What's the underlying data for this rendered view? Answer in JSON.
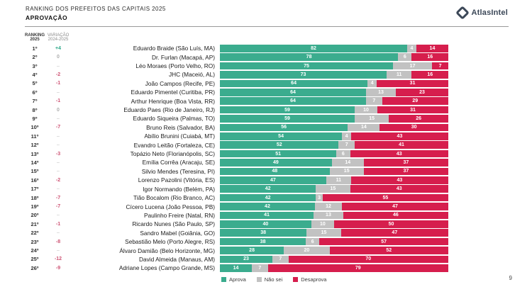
{
  "header": {
    "title": "RANKING DOS PREFEITOS DAS CAPITAIS 2025",
    "subtitle": "APROVAÇÃO",
    "brand": "AtlasIntel"
  },
  "table_header": {
    "ranking_line1": "RANKING",
    "ranking_line2": "2025",
    "variation_line1": "VARIAÇÃO",
    "variation_line2": "2024-2025"
  },
  "legend": {
    "items": [
      {
        "label": "Aprova",
        "color": "#3BAC8E"
      },
      {
        "label": "Não sei",
        "color": "#C2C2C2"
      },
      {
        "label": "Desaprova",
        "color": "#D61E4D"
      }
    ]
  },
  "page_number": "9",
  "colors": {
    "aprova": "#3BAC8E",
    "nao_sei": "#C2C2C2",
    "desaprova": "#D61E4D",
    "variation_positive": "#2EA98A",
    "variation_negative": "#CE5374",
    "variation_neutral": "#ADADAD",
    "brand_navy": "#3C4858"
  },
  "chart_data": {
    "type": "bar",
    "orientation": "horizontal-stacked",
    "unit": "%",
    "title": "RANKING DOS PREFEITOS DAS CAPITAIS 2025 — APROVAÇÃO",
    "legend_position": "bottom",
    "series_names": [
      "Aprova",
      "Não sei",
      "Desaprova"
    ],
    "categories": [
      "Eduardo Braide (São Luís, MA)",
      "Dr. Furlan (Macapá, AP)",
      "Léo Moraes (Porto Velho, RO)",
      "JHC (Maceió, AL)",
      "João Campos (Recife, PE)",
      "Eduardo Pimentel (Curitiba, PR)",
      "Arthur Henrique (Boa Vista, RR)",
      "Eduardo Paes (Rio de Janeiro, RJ)",
      "Eduardo Siqueira (Palmas, TO)",
      "Bruno Reis (Salvador, BA)",
      "Abílio Brunini (Cuiabá, MT)",
      "Evandro Leitão (Fortaleza, CE)",
      "Topázio Neto (Florianópolis, SC)",
      "Emília Corrêa (Aracaju, SE)",
      "Silvio Mendes (Teresina, PI)",
      "Lorenzo Pazolini (Vitória, ES)",
      "Igor Normando (Belém, PA)",
      "Tião Bocalom (Rio Branco, AC)",
      "Cícero Lucena (João Pessoa, PB)",
      "Paulinho Freire (Natal, RN)",
      "Ricardo Nunes (São Paulo, SP)",
      "Sandro Mabel (Goiânia, GO)",
      "Sebastião Melo (Porto Alegre, RS)",
      "Álvaro Damião (Belo Horizonte, MG)",
      "David Almeida (Manaus, AM)",
      "Adriane Lopes (Campo Grande, MS)"
    ],
    "series": [
      {
        "name": "Aprova",
        "values": [
          82,
          78,
          75,
          73,
          64,
          64,
          64,
          59,
          59,
          56,
          54,
          52,
          51,
          49,
          48,
          47,
          42,
          42,
          42,
          41,
          40,
          38,
          38,
          28,
          23,
          14
        ]
      },
      {
        "name": "Não sei",
        "values": [
          4,
          6,
          17,
          11,
          4,
          13,
          7,
          10,
          15,
          14,
          4,
          7,
          6,
          14,
          15,
          11,
          15,
          3,
          12,
          13,
          10,
          15,
          6,
          20,
          7,
          7
        ]
      },
      {
        "name": "Desaprova",
        "values": [
          14,
          16,
          7,
          16,
          31,
          23,
          29,
          31,
          26,
          30,
          43,
          41,
          43,
          37,
          37,
          43,
          43,
          55,
          47,
          46,
          50,
          47,
          57,
          52,
          70,
          79
        ]
      }
    ],
    "rows": [
      {
        "rank": "1º",
        "variation": "+4",
        "trend": "up",
        "name": "Eduardo Braide (São Luís, MA)",
        "aprova": 82,
        "nao_sei": 4,
        "desaprova": 14
      },
      {
        "rank": "2º",
        "variation": "0",
        "trend": "zero",
        "name": "Dr. Furlan (Macapá, AP)",
        "aprova": 78,
        "nao_sei": 6,
        "desaprova": 16
      },
      {
        "rank": "3º",
        "variation": "–",
        "trend": "none",
        "name": "Léo Moraes (Porto Velho, RO)",
        "aprova": 75,
        "nao_sei": 17,
        "desaprova": 7
      },
      {
        "rank": "4º",
        "variation": "-2",
        "trend": "down",
        "name": "JHC (Maceió, AL)",
        "aprova": 73,
        "nao_sei": 11,
        "desaprova": 16
      },
      {
        "rank": "5º",
        "variation": "-1",
        "trend": "down",
        "name": "João Campos (Recife, PE)",
        "aprova": 64,
        "nao_sei": 4,
        "desaprova": 31
      },
      {
        "rank": "6º",
        "variation": "–",
        "trend": "none",
        "name": "Eduardo Pimentel (Curitiba, PR)",
        "aprova": 64,
        "nao_sei": 13,
        "desaprova": 23
      },
      {
        "rank": "7º",
        "variation": "-1",
        "trend": "down",
        "name": "Arthur Henrique (Boa Vista, RR)",
        "aprova": 64,
        "nao_sei": 7,
        "desaprova": 29
      },
      {
        "rank": "8º",
        "variation": "0",
        "trend": "zero",
        "name": "Eduardo Paes (Rio de Janeiro, RJ)",
        "aprova": 59,
        "nao_sei": 10,
        "desaprova": 31
      },
      {
        "rank": "9º",
        "variation": "–",
        "trend": "none",
        "name": "Eduardo Siqueira (Palmas, TO)",
        "aprova": 59,
        "nao_sei": 15,
        "desaprova": 26
      },
      {
        "rank": "10º",
        "variation": "-7",
        "trend": "down",
        "name": "Bruno Reis (Salvador, BA)",
        "aprova": 56,
        "nao_sei": 14,
        "desaprova": 30
      },
      {
        "rank": "11º",
        "variation": "–",
        "trend": "none",
        "name": "Abílio Brunini (Cuiabá, MT)",
        "aprova": 54,
        "nao_sei": 4,
        "desaprova": 43
      },
      {
        "rank": "12º",
        "variation": "–",
        "trend": "none",
        "name": "Evandro Leitão (Fortaleza, CE)",
        "aprova": 52,
        "nao_sei": 7,
        "desaprova": 41
      },
      {
        "rank": "13º",
        "variation": "-3",
        "trend": "down",
        "name": "Topázio Neto (Florianópolis, SC)",
        "aprova": 51,
        "nao_sei": 6,
        "desaprova": 43
      },
      {
        "rank": "14º",
        "variation": "–",
        "trend": "none",
        "name": "Emília Corrêa (Aracaju, SE)",
        "aprova": 49,
        "nao_sei": 14,
        "desaprova": 37
      },
      {
        "rank": "15º",
        "variation": "–",
        "trend": "none",
        "name": "Silvio Mendes (Teresina, PI)",
        "aprova": 48,
        "nao_sei": 15,
        "desaprova": 37
      },
      {
        "rank": "16º",
        "variation": "-2",
        "trend": "down",
        "name": "Lorenzo Pazolini (Vitória, ES)",
        "aprova": 47,
        "nao_sei": 11,
        "desaprova": 43
      },
      {
        "rank": "17º",
        "variation": "–",
        "trend": "none",
        "name": "Igor Normando (Belém, PA)",
        "aprova": 42,
        "nao_sei": 15,
        "desaprova": 43
      },
      {
        "rank": "18º",
        "variation": "-7",
        "trend": "down",
        "name": "Tião Bocalom (Rio Branco, AC)",
        "aprova": 42,
        "nao_sei": 3,
        "desaprova": 55
      },
      {
        "rank": "19º",
        "variation": "-7",
        "trend": "down",
        "name": "Cícero Lucena (João Pessoa, PB)",
        "aprova": 42,
        "nao_sei": 12,
        "desaprova": 47
      },
      {
        "rank": "20º",
        "variation": "–",
        "trend": "none",
        "name": "Paulinho Freire (Natal, RN)",
        "aprova": 41,
        "nao_sei": 13,
        "desaprova": 46
      },
      {
        "rank": "21º",
        "variation": "-1",
        "trend": "down",
        "name": "Ricardo Nunes (São Paulo, SP)",
        "aprova": 40,
        "nao_sei": 10,
        "desaprova": 50
      },
      {
        "rank": "22º",
        "variation": "–",
        "trend": "none",
        "name": "Sandro Mabel (Goiânia, GO)",
        "aprova": 38,
        "nao_sei": 15,
        "desaprova": 47
      },
      {
        "rank": "23º",
        "variation": "-8",
        "trend": "down",
        "name": "Sebastião Melo (Porto Alegre, RS)",
        "aprova": 38,
        "nao_sei": 6,
        "desaprova": 57
      },
      {
        "rank": "24º",
        "variation": "–",
        "trend": "none",
        "name": "Álvaro Damião (Belo Horizonte, MG)",
        "aprova": 28,
        "nao_sei": 20,
        "desaprova": 52
      },
      {
        "rank": "25º",
        "variation": "-12",
        "trend": "down",
        "name": "David Almeida (Manaus, AM)",
        "aprova": 23,
        "nao_sei": 7,
        "desaprova": 70
      },
      {
        "rank": "26º",
        "variation": "-9",
        "trend": "down",
        "name": "Adriane Lopes (Campo Grande, MS)",
        "aprova": 14,
        "nao_sei": 7,
        "desaprova": 79
      }
    ]
  }
}
